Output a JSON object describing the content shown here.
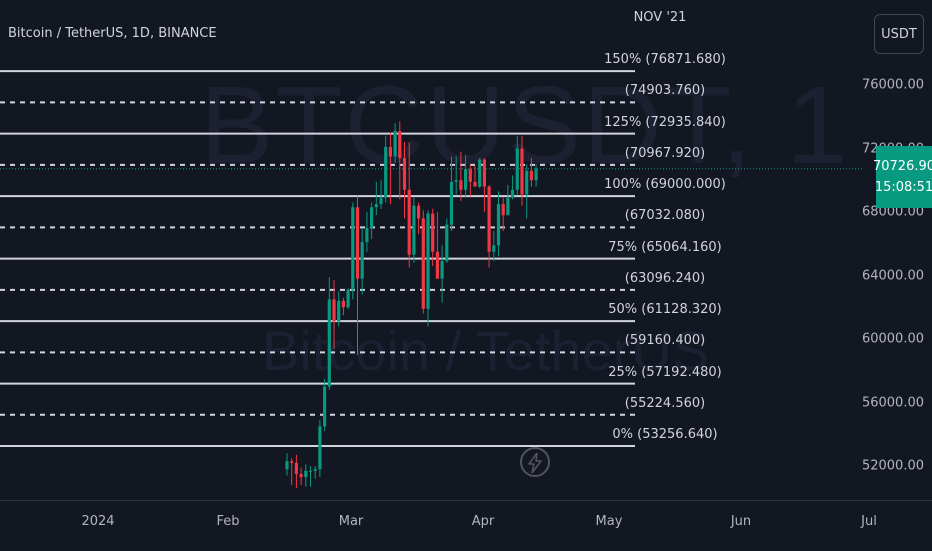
{
  "header": {
    "symbol_title": "Bitcoin / TetherUS, 1D, BINANCE",
    "watermark_symbol": "BTCUSDT, 1",
    "watermark_name": "Bitcoin / TetherUS"
  },
  "fib_month_label": "NOV '21",
  "fib_levels": [
    {
      "label": "150% (76871.680)",
      "value": 76871.68,
      "style": "solid"
    },
    {
      "label": "(74903.760)",
      "value": 74903.76,
      "style": "dashed"
    },
    {
      "label": "125% (72935.840)",
      "value": 72935.84,
      "style": "solid"
    },
    {
      "label": "(70967.920)",
      "value": 70967.92,
      "style": "dashed"
    },
    {
      "label": "100% (69000.000)",
      "value": 69000.0,
      "style": "solid"
    },
    {
      "label": "(67032.080)",
      "value": 67032.08,
      "style": "dashed"
    },
    {
      "label": "75% (65064.160)",
      "value": 65064.16,
      "style": "solid"
    },
    {
      "label": "(63096.240)",
      "value": 63096.24,
      "style": "dashed"
    },
    {
      "label": "50% (61128.320)",
      "value": 61128.32,
      "style": "solid"
    },
    {
      "label": "(59160.400)",
      "value": 59160.4,
      "style": "dashed"
    },
    {
      "label": "25% (57192.480)",
      "value": 57192.48,
      "style": "solid"
    },
    {
      "label": "(55224.560)",
      "value": 55224.56,
      "style": "dashed"
    },
    {
      "label": "0% (53256.640)",
      "value": 53256.64,
      "style": "solid"
    }
  ],
  "price_axis": {
    "currency_button": "USDT",
    "ticks": [
      "76000.00",
      "72000.00",
      "68000.00",
      "64000.00",
      "60000.00",
      "56000.00",
      "52000.00"
    ],
    "tick_values": [
      76000,
      72000,
      68000,
      64000,
      60000,
      56000,
      52000
    ],
    "last_price": "70726.90",
    "last_price_value": 70726.9,
    "countdown": "15:08:51"
  },
  "time_axis": {
    "ticks": [
      "2024",
      "Feb",
      "Mar",
      "Apr",
      "May",
      "Jun",
      "Jul"
    ]
  },
  "colors": {
    "up": "#089981",
    "down": "#f23645",
    "background": "#131722",
    "fib_line": "#d1d4dc"
  },
  "chart_data": {
    "type": "candlestick",
    "x": [
      "Feb-19",
      "Feb-20",
      "Feb-21",
      "Feb-22",
      "Feb-23",
      "Feb-24",
      "Feb-25",
      "Feb-26",
      "Feb-27",
      "Feb-28",
      "Feb-29",
      "Mar-01",
      "Mar-02",
      "Mar-03",
      "Mar-04",
      "Mar-05",
      "Mar-06",
      "Mar-07",
      "Mar-08",
      "Mar-09",
      "Mar-10",
      "Mar-11",
      "Mar-12",
      "Mar-13",
      "Mar-14",
      "Mar-15",
      "Mar-16",
      "Mar-17",
      "Mar-18",
      "Mar-19",
      "Mar-20",
      "Mar-21",
      "Mar-22",
      "Mar-23",
      "Mar-24",
      "Mar-25",
      "Mar-26",
      "Mar-27",
      "Mar-28",
      "Mar-29",
      "Mar-30",
      "Mar-31",
      "Apr-01",
      "Apr-02",
      "Apr-03",
      "Apr-04",
      "Apr-05",
      "Apr-06",
      "Apr-07",
      "Apr-08",
      "Apr-09",
      "Apr-10",
      "Apr-11",
      "Apr-12"
    ],
    "open": [
      51800,
      52300,
      52200,
      51500,
      51300,
      51700,
      51700,
      51800,
      54500,
      57000,
      62500,
      61100,
      62400,
      62000,
      63100,
      68300,
      63800,
      66100,
      67000,
      68300,
      68500,
      68900,
      72100,
      71500,
      73100,
      71400,
      69400,
      65300,
      68400,
      67600,
      61900,
      67900,
      65500,
      63800,
      64900,
      67200,
      69900,
      70000,
      69400,
      70700,
      69900,
      69600,
      71300,
      69600,
      65500,
      65900,
      68500,
      67800,
      68900,
      69400,
      72000,
      69100,
      70600,
      70000
    ],
    "high": [
      52800,
      52500,
      52700,
      51900,
      52100,
      52000,
      52000,
      54900,
      57500,
      63900,
      63700,
      63000,
      62600,
      63200,
      68600,
      69000,
      67000,
      68000,
      68600,
      69900,
      70000,
      72800,
      73000,
      73600,
      73700,
      72400,
      72400,
      68900,
      68600,
      68100,
      68100,
      68200,
      68000,
      65900,
      67600,
      71500,
      71500,
      71800,
      71600,
      71000,
      70900,
      71400,
      71400,
      69700,
      66800,
      69300,
      68900,
      69700,
      70300,
      72800,
      72800,
      71000,
      71400,
      71000
    ],
    "low": [
      51400,
      50800,
      50600,
      50800,
      50700,
      50700,
      51200,
      51300,
      54200,
      56800,
      59400,
      60800,
      61500,
      61900,
      62500,
      59000,
      62800,
      65500,
      66300,
      67800,
      68200,
      68600,
      68500,
      71100,
      68800,
      67600,
      64500,
      64800,
      66600,
      61600,
      60800,
      64600,
      63800,
      62300,
      64800,
      66800,
      69100,
      68700,
      68900,
      69000,
      69600,
      69500,
      68000,
      64500,
      64900,
      65200,
      66800,
      67800,
      68800,
      69100,
      68400,
      67600,
      69600,
      69600
    ],
    "close": [
      52300,
      52200,
      51500,
      51300,
      51700,
      51700,
      51800,
      54500,
      57000,
      62500,
      61100,
      62400,
      62000,
      63100,
      68300,
      63800,
      66100,
      67000,
      68300,
      68500,
      68900,
      72100,
      71500,
      73100,
      71400,
      69400,
      65300,
      68400,
      67600,
      61900,
      67900,
      65500,
      63800,
      64900,
      67200,
      69900,
      70000,
      69400,
      70700,
      69900,
      69600,
      71300,
      69600,
      65500,
      65900,
      68500,
      67800,
      68900,
      69400,
      72000,
      69100,
      70600,
      70000,
      70727
    ]
  }
}
